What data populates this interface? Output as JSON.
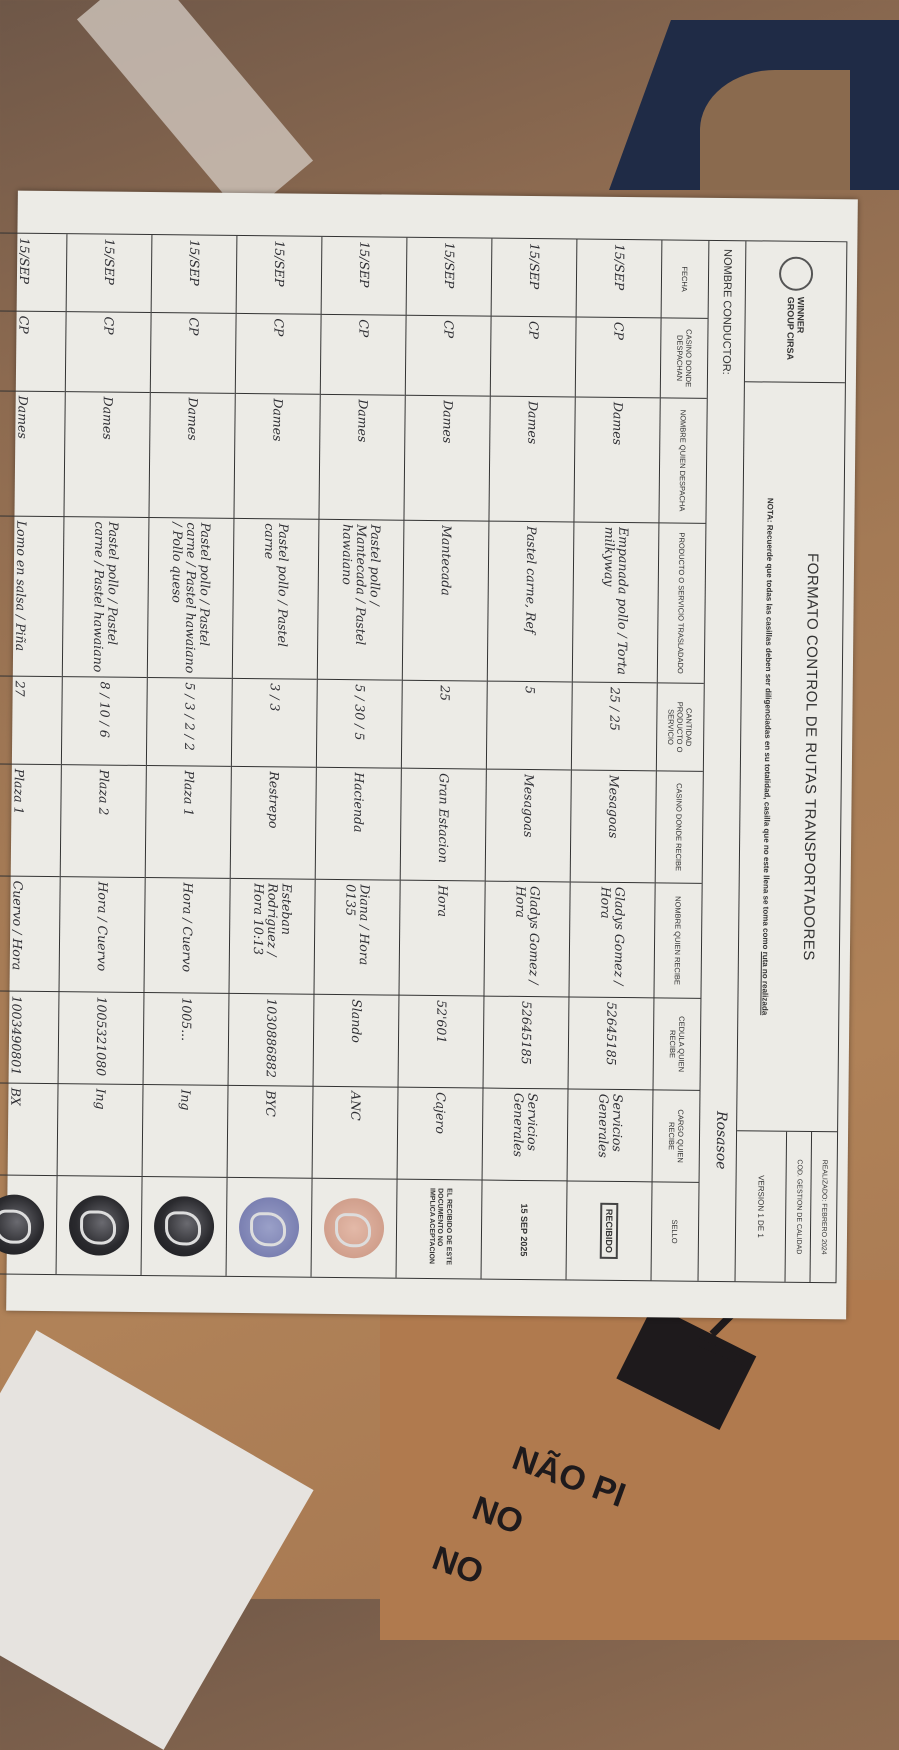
{
  "document": {
    "logo": "WINNER GROUP CIRSA",
    "title": "FORMATO CONTROL DE RUTAS TRANSPORTADORES",
    "note": "NOTA: Recuerde que todas las casillas deben ser diligenciadas en su totalidad, casilla que no este llena se toma como",
    "note_emphasis": "ruta no realizada",
    "meta": [
      "REALIZADO: FEBRERO 2024",
      "COD. GESTION DE CALIDAD",
      "VERSION 1 DE 1"
    ],
    "conductor_label": "NOMBRE CONDUCTOR:",
    "conductor_value": "Rosasoe",
    "columns": [
      "FECHA",
      "CASINO DONDE DESPACHAN",
      "NOMBRE QUIEN DESPACHA",
      "PRODUCTO O SERVICIO TRASLADADO",
      "CANTIDAD PRODUCTO O SERVICIO",
      "CASINO DONDE RECIBE",
      "NOMBRE QUIEN RECIBE",
      "CEDULA QUIEN RECIBE",
      "CARGO QUIEN RECIBE",
      "SELLO"
    ],
    "rows": [
      {
        "fecha": "15/SEP",
        "casino_despacha": "CP",
        "nombre_despacha": "Dames",
        "producto": "Empanada pollo / Torta milkyway",
        "cantidad": "25 / 25",
        "casino_recibe": "Mesagoas",
        "nombre_recibe": "Gladys Gomez / Hora",
        "cedula": "52645185",
        "cargo": "Servicios Generales",
        "sello": "recibido"
      },
      {
        "fecha": "15/SEP",
        "casino_despacha": "CP",
        "nombre_despacha": "Dames",
        "producto": "Pastel carne, Ref",
        "cantidad": "5",
        "casino_recibe": "Mesagoas",
        "nombre_recibe": "Gladys Gomez / Hora",
        "cedula": "52645185",
        "cargo": "Servicios Generales",
        "sello": "date"
      },
      {
        "fecha": "15/SEP",
        "casino_despacha": "CP",
        "nombre_despacha": "Dames",
        "producto": "Mantecada",
        "cantidad": "25",
        "casino_recibe": "Gran Estacion",
        "nombre_recibe": "Hora",
        "cedula": "52'601",
        "cargo": "Cajero",
        "sello": "text"
      },
      {
        "fecha": "15/SEP",
        "casino_despacha": "CP",
        "nombre_despacha": "Dames",
        "producto": "Pastel pollo / Mantecada / Pastel hawaiano",
        "cantidad": "5 / 30 / 5",
        "casino_recibe": "Hacienda",
        "nombre_recibe": "Diana / Hora 0135",
        "cedula": "Slando",
        "cargo": "ANC",
        "sello": "pink"
      },
      {
        "fecha": "15/SEP",
        "casino_despacha": "CP",
        "nombre_despacha": "Dames",
        "producto": "Pastel pollo / Pastel carne",
        "cantidad": "3 / 3",
        "casino_recibe": "Restrepo",
        "nombre_recibe": "Esteban Rodriguez / Hora 10:13",
        "cedula": "1030886882",
        "cargo": "BYC",
        "sello": "blue"
      },
      {
        "fecha": "15/SEP",
        "casino_despacha": "CP",
        "nombre_despacha": "Dames",
        "producto": "Pastel pollo / Pastel carne / Pastel hawaiano / Pollo queso",
        "cantidad": "5 / 3 / 2 / 2",
        "casino_recibe": "Plaza 1",
        "nombre_recibe": "Hora / Cuervo",
        "cedula": "1005...",
        "cargo": "Ing",
        "sello": "dark"
      },
      {
        "fecha": "15/SEP",
        "casino_despacha": "CP",
        "nombre_despacha": "Dames",
        "producto": "Pastel pollo / Pastel carne / Pastel hawaiano",
        "cantidad": "8 / 10 / 6",
        "casino_recibe": "Plaza 2",
        "nombre_recibe": "Hora / Cuervo",
        "cedula": "1005321080",
        "cargo": "Ing",
        "sello": "dark"
      },
      {
        "fecha": "15/SEP",
        "casino_despacha": "CP",
        "nombre_despacha": "Dames",
        "producto": "Lomo en salsa / Piña",
        "cantidad": "27",
        "casino_recibe": "Plaza 1",
        "nombre_recibe": "Cuervo / Hora",
        "cedula": "1003490801",
        "cargo": "BX",
        "sello": "dark"
      }
    ],
    "stamp_recibido": "RECIBIDO",
    "stamp_date": "15 SEP 2025",
    "stamp_text": "EL RECIBIDO DE ESTE DOCUMENTO NO IMPLICA ACEPTACION"
  },
  "background": {
    "box_text": [
      "NÃO PI",
      "NO",
      "NO"
    ]
  }
}
